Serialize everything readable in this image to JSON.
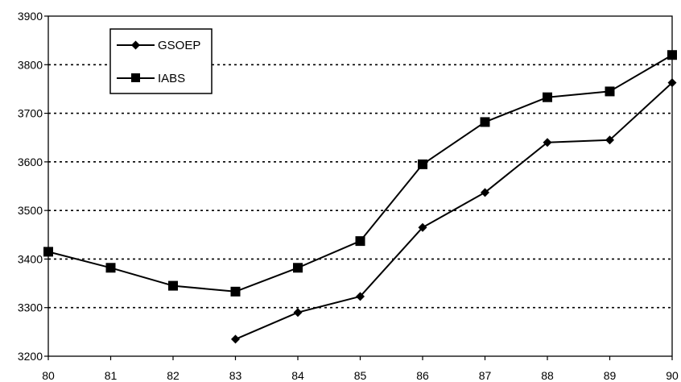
{
  "chart_data": {
    "type": "line",
    "x": [
      "80",
      "81",
      "82",
      "83",
      "84",
      "85",
      "86",
      "87",
      "88",
      "89",
      "90"
    ],
    "ylim": [
      3200,
      3900
    ],
    "yticks": [
      "3200",
      "3300",
      "3400",
      "3500",
      "3600",
      "3700",
      "3800",
      "3900"
    ],
    "grid": "horizontal dotted",
    "legend_position": "top-left",
    "series": [
      {
        "name": "GSOEP",
        "marker": "diamond",
        "values": [
          null,
          null,
          null,
          3235,
          3290,
          3323,
          3465,
          3537,
          3640,
          3645,
          3763
        ]
      },
      {
        "name": "IABS",
        "marker": "square",
        "values": [
          3415,
          3382,
          3345,
          3333,
          3382,
          3437,
          3595,
          3682,
          3733,
          3745,
          3820
        ]
      }
    ]
  }
}
